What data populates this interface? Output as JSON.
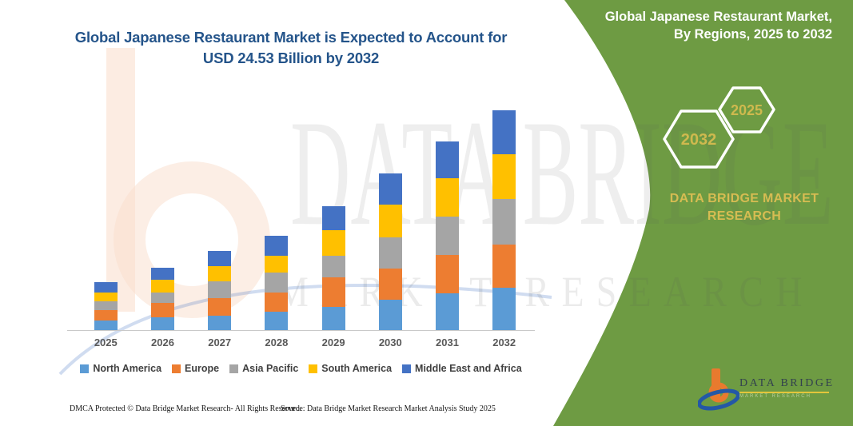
{
  "title": {
    "line1": "Global Japanese Restaurant Market is Expected to Account for",
    "line2": "USD 24.53 Billion by 2032"
  },
  "panel": {
    "heading_line1": "Global Japanese Restaurant Market,",
    "heading_line2": "By Regions, 2025 to 2032",
    "hexagons": [
      {
        "label": "2032"
      },
      {
        "label": "2025"
      }
    ],
    "brand_line1": "DATA BRIDGE MARKET",
    "brand_line2": "RESEARCH",
    "colors": {
      "panel_green": "#6e9b43",
      "gold_text": "#d6bc52",
      "hexagon_stroke": "#ffffff"
    }
  },
  "logo": {
    "name": "DATA BRIDGE",
    "subtext": "MARKET  RESEARCH"
  },
  "watermark": {
    "line1": "DATA BRIDGE",
    "line2": "MARKET RESEARCH"
  },
  "footer": {
    "left": "DMCA Protected © Data Bridge Market Research-  All Rights Reserved.",
    "source": "Source: Data Bridge Market Research  Market Analysis Study 2025"
  },
  "chart_data": {
    "type": "bar",
    "stacked": true,
    "title": "Global Japanese Restaurant Market is Expected to Account for USD 24.53 Billion by 2032",
    "unit": "USD billion",
    "values_estimated_from_bar_heights": true,
    "categories": [
      "2025",
      "2026",
      "2027",
      "2028",
      "2029",
      "2030",
      "2031",
      "2032"
    ],
    "series": [
      {
        "name": "North America",
        "color": "#5B9BD5",
        "values": [
          1.16,
          1.51,
          1.69,
          2.13,
          2.67,
          3.47,
          4.18,
          4.8
        ]
      },
      {
        "name": "Europe",
        "color": "#ED7D31",
        "values": [
          1.16,
          1.6,
          1.96,
          2.13,
          3.29,
          3.47,
          4.27,
          4.8
        ]
      },
      {
        "name": "Asia Pacific",
        "color": "#A5A5A5",
        "values": [
          0.98,
          1.16,
          1.87,
          2.22,
          2.4,
          3.47,
          4.27,
          5.07
        ]
      },
      {
        "name": "South America",
        "color": "#FFC000",
        "values": [
          0.98,
          1.42,
          1.69,
          1.87,
          2.84,
          3.64,
          4.27,
          4.98
        ]
      },
      {
        "name": "Middle East and Africa",
        "color": "#4472C4",
        "values": [
          1.16,
          1.33,
          1.69,
          2.22,
          2.67,
          3.47,
          4.09,
          4.88
        ]
      }
    ],
    "totals": [
      5.44,
      7.02,
      8.9,
      10.57,
      13.87,
      17.52,
      21.08,
      24.53
    ],
    "xlabel": "",
    "ylabel": "",
    "y_axis_visible": false,
    "gridlines": false,
    "legend_position": "bottom"
  }
}
